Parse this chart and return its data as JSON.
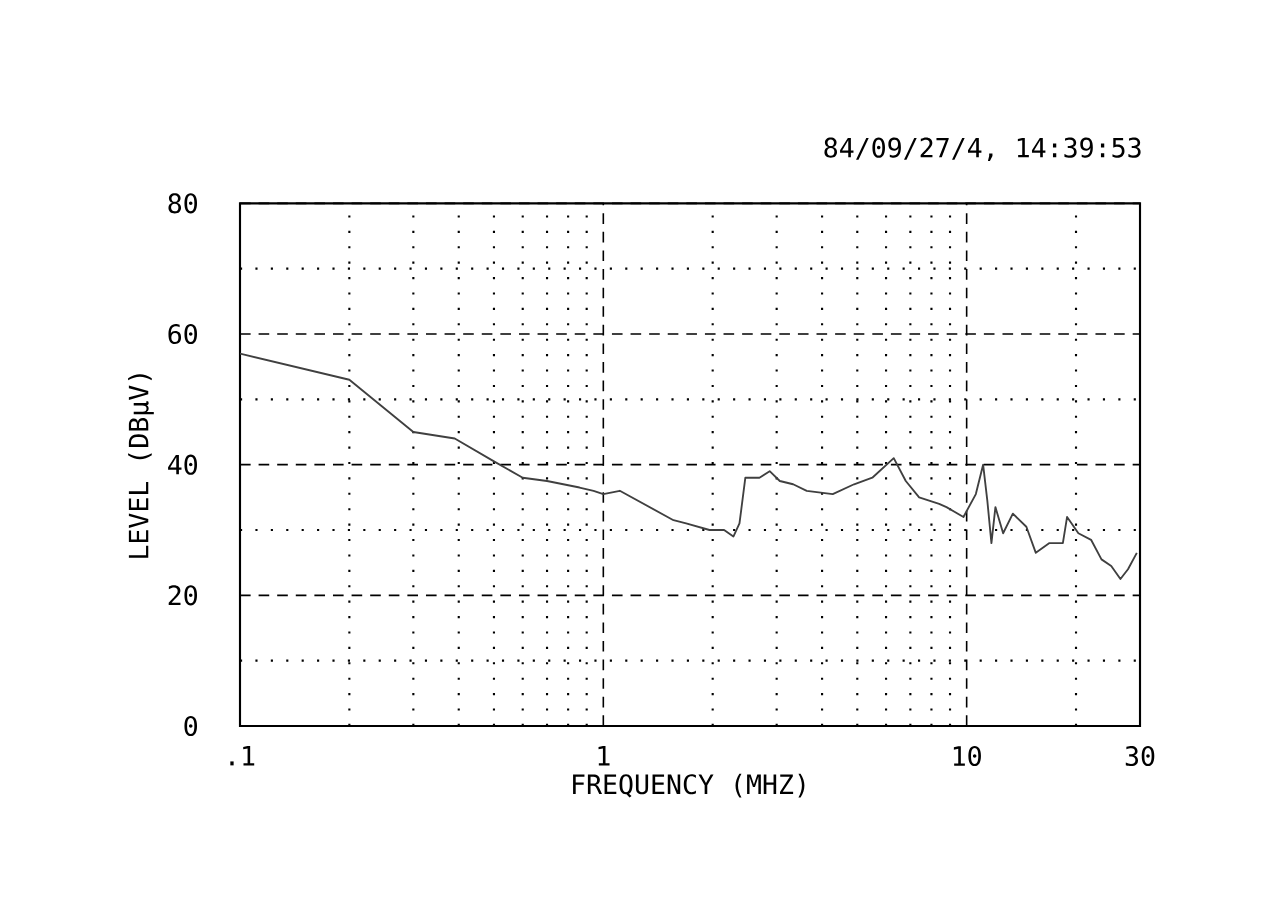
{
  "chart_data": {
    "type": "line",
    "subtitle": "84/09/27/4, 14:39:53",
    "xlabel": "FREQUENCY (MHZ)",
    "ylabel": "LEVEL (DBμV)",
    "log": "x",
    "grid": true,
    "marker": "none",
    "line_style": "solid",
    "xlim": [
      0.1,
      30
    ],
    "ylim": [
      0,
      80
    ],
    "xticks": [
      {
        "value": 0.1,
        "label": ".1"
      },
      1,
      10,
      30
    ],
    "yticks": [
      0,
      20,
      40,
      60,
      80
    ],
    "series": [
      {
        "color": "#404040",
        "x": [
          0.1,
          0.2,
          0.3,
          0.39,
          0.5,
          0.6,
          0.7,
          0.86,
          0.94,
          1.0,
          1.11,
          1.56,
          1.69,
          1.96,
          2.15,
          2.28,
          2.37,
          2.46,
          2.69,
          2.87,
          3.06,
          3.33,
          3.63,
          4.28,
          4.9,
          5.5,
          6.3,
          6.8,
          7.4,
          8.4,
          8.8,
          9.8,
          10.6,
          11.1,
          11.4,
          11.7,
          12,
          12.6,
          13.4,
          14.6,
          15.5,
          16.9,
          18.4,
          18.9,
          20.3,
          22,
          23.5,
          25,
          26.5,
          27.8,
          29.4
        ],
        "values": [
          57,
          53,
          45,
          44,
          40.5,
          38,
          37.5,
          36.5,
          36,
          35.5,
          36,
          31.5,
          31,
          30,
          30,
          29,
          31,
          38,
          38,
          39,
          37.5,
          37,
          36,
          35.5,
          37,
          38,
          41,
          37.5,
          35,
          34,
          33.5,
          32,
          35.5,
          40,
          34.5,
          28,
          33.5,
          29.5,
          32.5,
          30.5,
          26.5,
          28,
          28,
          32,
          29.5,
          28.5,
          25.5,
          24.5,
          22.5,
          24,
          26.5
        ]
      }
    ]
  }
}
